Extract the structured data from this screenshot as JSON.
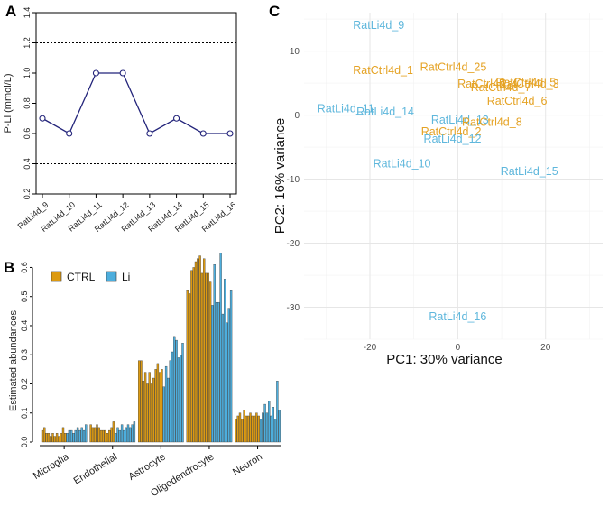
{
  "panels": {
    "a": "A",
    "b": "B",
    "c": "C"
  },
  "colors": {
    "ctrl": "#E5A325",
    "li": "#5FB7DC",
    "line": "#22237A",
    "ctrl_bar": "#DC9A12",
    "li_bar": "#4DAEDD"
  },
  "chart_data": [
    {
      "id": "A",
      "type": "line",
      "ylabel": "P-Li (mmol/L)",
      "categories": [
        "RatLi4d_9",
        "RatLi4d_10",
        "RatLi4d_11",
        "RatLi4d_12",
        "RatLi4d_13",
        "RatLi4d_14",
        "RatLi4d_15",
        "RatLi4d_16"
      ],
      "values": [
        0.7,
        0.6,
        1.0,
        1.0,
        0.6,
        0.7,
        0.6,
        0.6
      ],
      "ylim": [
        0.2,
        1.4
      ],
      "yticks": [
        0.2,
        0.4,
        0.6,
        0.8,
        1.0,
        1.2,
        1.4
      ],
      "ytick_labels": [
        "0.2",
        "0.4",
        "0.6",
        "0.8",
        "1.0",
        "1.2",
        "1.4"
      ],
      "reference_lines": [
        0.4,
        1.2
      ]
    },
    {
      "id": "B",
      "type": "bar",
      "ylabel": "Estimated abundances",
      "legend": [
        "CTRL",
        "Li"
      ],
      "ylim": [
        0,
        0.62
      ],
      "yticks": [
        0.0,
        0.1,
        0.2,
        0.3,
        0.4,
        0.5,
        0.6
      ],
      "ytick_labels": [
        "0.0",
        "0.1",
        "0.2",
        "0.3",
        "0.4",
        "0.5",
        "0.6"
      ],
      "groups": [
        {
          "name": "Microglia",
          "ctrl": [
            0.04,
            0.05,
            0.03,
            0.03,
            0.02,
            0.03,
            0.02,
            0.03,
            0.02,
            0.03,
            0.05,
            0.03
          ],
          "li": [
            0.03,
            0.04,
            0.04,
            0.03,
            0.04,
            0.05,
            0.04,
            0.05,
            0.04,
            0.06
          ]
        },
        {
          "name": "Endothelial",
          "ctrl": [
            0.06,
            0.05,
            0.05,
            0.06,
            0.05,
            0.04,
            0.04,
            0.04,
            0.03,
            0.04,
            0.05,
            0.07
          ],
          "li": [
            0.03,
            0.05,
            0.04,
            0.06,
            0.04,
            0.05,
            0.06,
            0.05,
            0.06,
            0.07
          ]
        },
        {
          "name": "Astrocyte",
          "ctrl": [
            0.28,
            0.28,
            0.21,
            0.24,
            0.2,
            0.24,
            0.2,
            0.22,
            0.25,
            0.27,
            0.24,
            0.25
          ],
          "li": [
            0.19,
            0.26,
            0.22,
            0.28,
            0.31,
            0.36,
            0.35,
            0.29,
            0.3,
            0.34
          ]
        },
        {
          "name": "Oligodendrocyte",
          "ctrl": [
            0.52,
            0.51,
            0.59,
            0.6,
            0.62,
            0.63,
            0.64,
            0.58,
            0.63,
            0.58,
            0.58,
            0.55
          ],
          "li": [
            0.47,
            0.61,
            0.48,
            0.48,
            0.65,
            0.44,
            0.56,
            0.41,
            0.46,
            0.52
          ]
        },
        {
          "name": "Neuron",
          "ctrl": [
            0.08,
            0.09,
            0.1,
            0.08,
            0.11,
            0.09,
            0.09,
            0.1,
            0.09,
            0.09,
            0.1,
            0.09
          ],
          "li": [
            0.08,
            0.1,
            0.13,
            0.1,
            0.14,
            0.09,
            0.12,
            0.08,
            0.21,
            0.11
          ]
        }
      ]
    },
    {
      "id": "C",
      "type": "scatter",
      "xlabel": "PC1: 30% variance",
      "ylabel": "PC2: 16% variance",
      "xlim": [
        -35,
        33
      ],
      "ylim": [
        -35,
        16
      ],
      "xticks": [
        -20,
        0,
        20
      ],
      "xtick_labels": [
        "-20",
        "0",
        "20"
      ],
      "yticks": [
        10,
        0,
        -10,
        -20,
        -30
      ],
      "ytick_labels": [
        "10",
        "0",
        "-10",
        "-20",
        "-30"
      ],
      "points": [
        {
          "label": "RatLi4d_9",
          "group": "Li",
          "x": -18,
          "y": 14
        },
        {
          "label": "RatCtrl4d_1",
          "group": "CTRL",
          "x": -17,
          "y": 7
        },
        {
          "label": "RatCtrl4d_25",
          "group": "CTRL",
          "x": -1,
          "y": 7.5
        },
        {
          "label": "RatCtrl4d_4",
          "group": "CTRL",
          "x": 6.8,
          "y": 4.9
        },
        {
          "label": "RatCtrl4d_7",
          "group": "CTRL",
          "x": 9.8,
          "y": 4.3
        },
        {
          "label": "RatCtrl4d_5",
          "group": "CTRL",
          "x": 15.5,
          "y": 5.1
        },
        {
          "label": "RatCtrl4d_3",
          "group": "CTRL",
          "x": 16.2,
          "y": 4.9
        },
        {
          "label": "RatCtrl4d_6",
          "group": "CTRL",
          "x": 13.5,
          "y": 2.2
        },
        {
          "label": "RatLi4d_11",
          "group": "Li",
          "x": -25.5,
          "y": 1
        },
        {
          "label": "RatLi4d_14",
          "group": "Li",
          "x": -16.5,
          "y": 0.5
        },
        {
          "label": "RatLi4d_13",
          "group": "Li",
          "x": 0.5,
          "y": -0.8
        },
        {
          "label": "RatCtrl4d_8",
          "group": "CTRL",
          "x": 7.8,
          "y": -1.1
        },
        {
          "label": "RatCtrl4d_2",
          "group": "CTRL",
          "x": -1.5,
          "y": -2.6
        },
        {
          "label": "RatLi4d_12",
          "group": "Li",
          "x": -1.2,
          "y": -3.7
        },
        {
          "label": "RatLi4d_10",
          "group": "Li",
          "x": -12.7,
          "y": -7.6
        },
        {
          "label": "RatLi4d_15",
          "group": "Li",
          "x": 16.3,
          "y": -8.8
        },
        {
          "label": "RatLi4d_16",
          "group": "Li",
          "x": 0,
          "y": -31.5
        }
      ]
    }
  ]
}
